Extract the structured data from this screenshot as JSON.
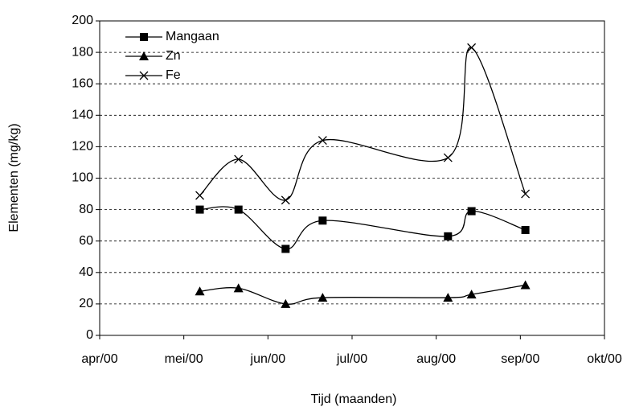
{
  "chart_data": {
    "type": "line",
    "x_label": "Tijd (maanden)",
    "y_label": "Elementen (mg/kg)",
    "x": [
      1.19,
      1.65,
      2.21,
      2.65,
      4.14,
      4.42,
      5.06
    ],
    "xlim": [
      0,
      6
    ],
    "xticks": [
      {
        "value": 0,
        "label": "apr/00"
      },
      {
        "value": 1,
        "label": "mei/00"
      },
      {
        "value": 2,
        "label": "jun/00"
      },
      {
        "value": 3,
        "label": "jul/00"
      },
      {
        "value": 4,
        "label": "aug/00"
      },
      {
        "value": 5,
        "label": "sep/00"
      },
      {
        "value": 6,
        "label": "okt/00"
      }
    ],
    "ylim": [
      0,
      200
    ],
    "yticks": [
      0,
      20,
      40,
      60,
      80,
      100,
      120,
      140,
      160,
      180,
      200
    ],
    "grid": true,
    "legend": "top-left",
    "series": [
      {
        "name": "Mangaan",
        "color": "#000000",
        "marker": "square",
        "values": [
          80,
          80,
          55,
          73,
          63,
          79,
          67
        ]
      },
      {
        "name": "Zn",
        "color": "#000000",
        "marker": "triangle",
        "values": [
          28,
          30,
          20,
          24,
          24,
          26,
          32
        ]
      },
      {
        "name": "Fe",
        "color": "#000000",
        "marker": "x",
        "values": [
          89,
          112,
          86,
          124,
          113,
          183,
          90
        ]
      }
    ]
  }
}
